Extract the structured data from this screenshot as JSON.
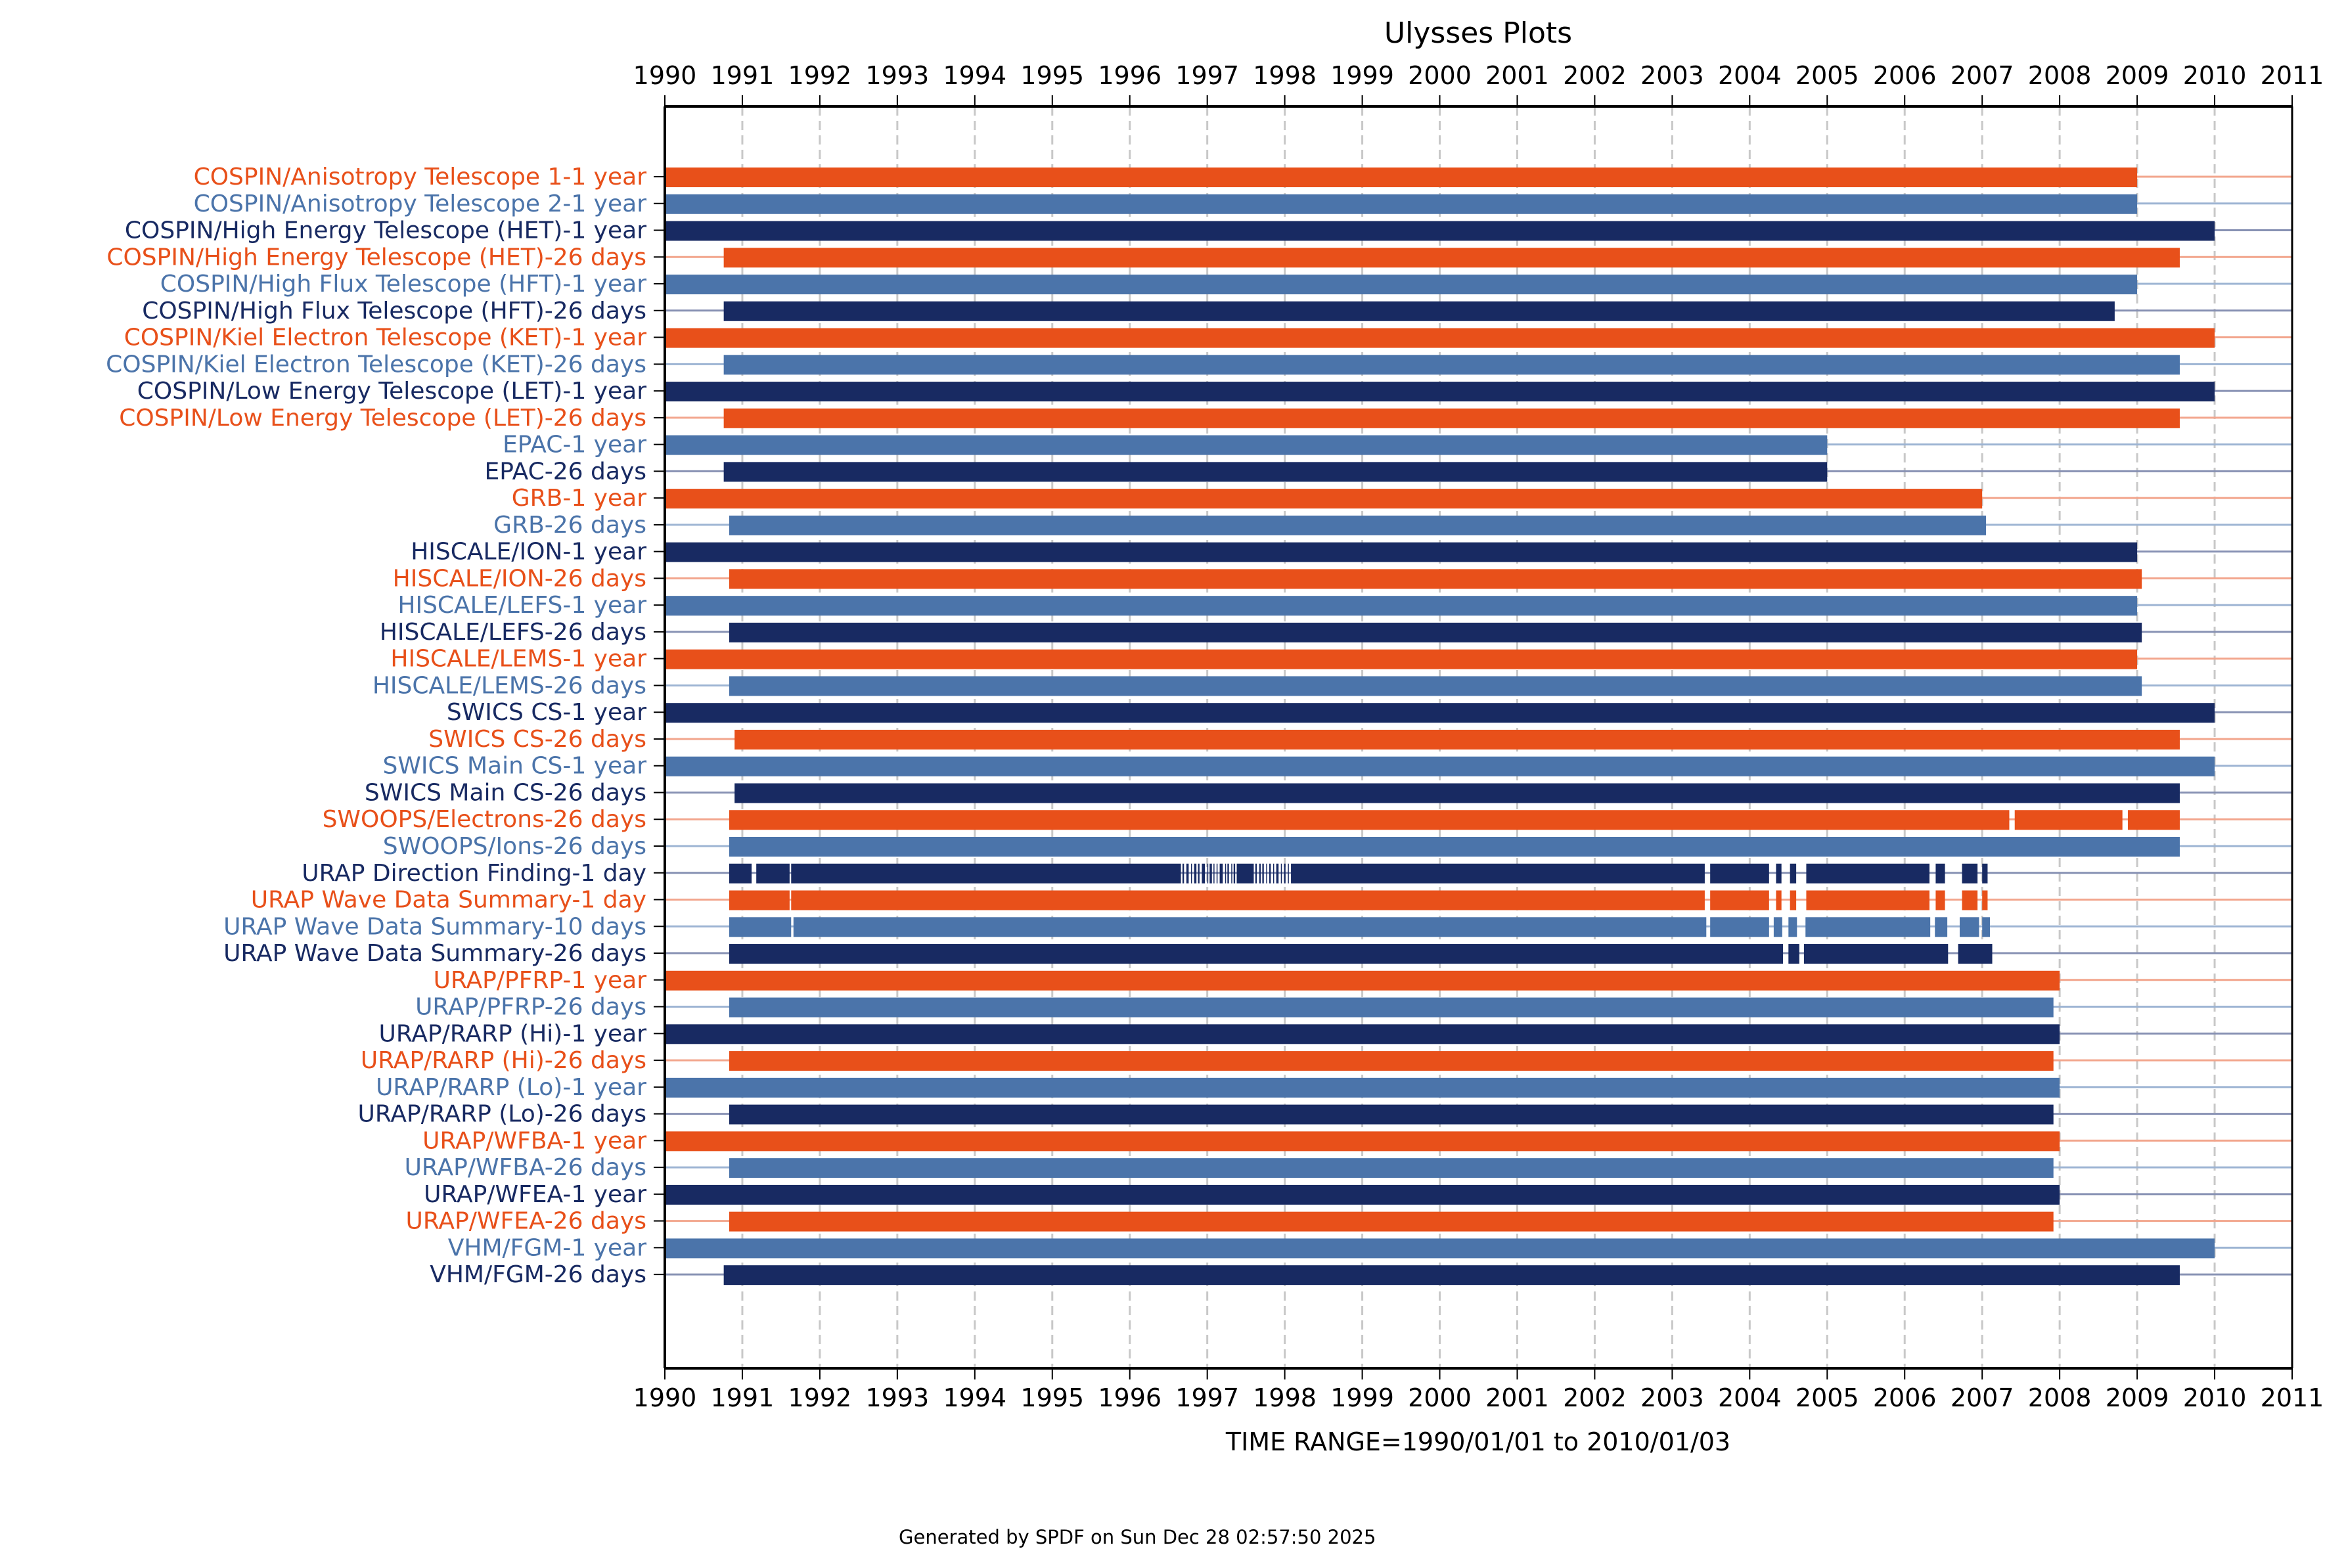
{
  "chart_data": {
    "type": "bar",
    "subtype": "timeline-gantt",
    "title": "Ulysses Plots",
    "xlabel": "TIME RANGE=1990/01/01 to 2010/01/03",
    "ylabel": "",
    "footer": "Generated by SPDF on Sun Dec 28 02:57:50 2025",
    "xlim": [
      1990,
      2011
    ],
    "x_ticks": [
      "1990",
      "1991",
      "1992",
      "1993",
      "1994",
      "1995",
      "1996",
      "1997",
      "1998",
      "1999",
      "2000",
      "2001",
      "2002",
      "2003",
      "2004",
      "2005",
      "2006",
      "2007",
      "2008",
      "2009",
      "2010",
      "2011"
    ],
    "grid": "vertical dashed at each year",
    "colors": {
      "orange": "#E8501A",
      "steel": "#4B74AA",
      "navy": "#182A62"
    },
    "rows": [
      {
        "label": "COSPIN/Anisotropy Telescope 1-1 year",
        "color": "orange",
        "segments": [
          [
            1990.0,
            2009.0
          ]
        ]
      },
      {
        "label": "COSPIN/Anisotropy Telescope 2-1 year",
        "color": "steel",
        "segments": [
          [
            1990.0,
            2009.0
          ]
        ]
      },
      {
        "label": "COSPIN/High Energy Telescope (HET)-1 year",
        "color": "navy",
        "segments": [
          [
            1990.0,
            2010.0
          ]
        ]
      },
      {
        "label": "COSPIN/High Energy Telescope (HET)-26 days",
        "color": "orange",
        "segments": [
          [
            1990.76,
            2009.55
          ]
        ]
      },
      {
        "label": "COSPIN/High Flux Telescope (HFT)-1 year",
        "color": "steel",
        "segments": [
          [
            1990.0,
            2009.0
          ]
        ]
      },
      {
        "label": "COSPIN/High Flux Telescope (HFT)-26 days",
        "color": "navy",
        "segments": [
          [
            1990.76,
            2008.71
          ]
        ]
      },
      {
        "label": "COSPIN/Kiel Electron Telescope (KET)-1 year",
        "color": "orange",
        "segments": [
          [
            1990.0,
            2010.0
          ]
        ]
      },
      {
        "label": "COSPIN/Kiel Electron Telescope (KET)-26 days",
        "color": "steel",
        "segments": [
          [
            1990.76,
            2009.55
          ]
        ]
      },
      {
        "label": "COSPIN/Low Energy Telescope (LET)-1 year",
        "color": "navy",
        "segments": [
          [
            1990.0,
            2010.0
          ]
        ]
      },
      {
        "label": "COSPIN/Low Energy Telescope (LET)-26 days",
        "color": "orange",
        "segments": [
          [
            1990.76,
            2009.55
          ]
        ]
      },
      {
        "label": "EPAC-1 year",
        "color": "steel",
        "segments": [
          [
            1990.0,
            2005.0
          ]
        ]
      },
      {
        "label": "EPAC-26 days",
        "color": "navy",
        "segments": [
          [
            1990.76,
            2005.0
          ]
        ]
      },
      {
        "label": "GRB-1 year",
        "color": "orange",
        "segments": [
          [
            1990.0,
            2007.0
          ]
        ]
      },
      {
        "label": "GRB-26 days",
        "color": "steel",
        "segments": [
          [
            1990.83,
            2007.05
          ]
        ]
      },
      {
        "label": "HISCALE/ION-1 year",
        "color": "navy",
        "segments": [
          [
            1990.0,
            2009.0
          ]
        ]
      },
      {
        "label": "HISCALE/ION-26 days",
        "color": "orange",
        "segments": [
          [
            1990.83,
            2009.06
          ]
        ]
      },
      {
        "label": "HISCALE/LEFS-1 year",
        "color": "steel",
        "segments": [
          [
            1990.0,
            2009.0
          ]
        ]
      },
      {
        "label": "HISCALE/LEFS-26 days",
        "color": "navy",
        "segments": [
          [
            1990.83,
            2009.06
          ]
        ]
      },
      {
        "label": "HISCALE/LEMS-1 year",
        "color": "orange",
        "segments": [
          [
            1990.0,
            2009.0
          ]
        ]
      },
      {
        "label": "HISCALE/LEMS-26 days",
        "color": "steel",
        "segments": [
          [
            1990.83,
            2009.06
          ]
        ]
      },
      {
        "label": "SWICS CS-1 year",
        "color": "navy",
        "segments": [
          [
            1990.0,
            2010.0
          ]
        ]
      },
      {
        "label": "SWICS CS-26 days",
        "color": "orange",
        "segments": [
          [
            1990.9,
            2009.55
          ]
        ]
      },
      {
        "label": "SWICS Main CS-1 year",
        "color": "steel",
        "segments": [
          [
            1990.0,
            2010.0
          ]
        ]
      },
      {
        "label": "SWICS Main CS-26 days",
        "color": "navy",
        "segments": [
          [
            1990.9,
            2009.55
          ]
        ]
      },
      {
        "label": "SWOOPS/Electrons-26 days",
        "color": "orange",
        "segments": [
          [
            1990.83,
            2007.35
          ],
          [
            2007.42,
            2008.81
          ],
          [
            2008.88,
            2009.55
          ]
        ]
      },
      {
        "label": "SWOOPS/Ions-26 days",
        "color": "steel",
        "segments": [
          [
            1990.83,
            2009.55
          ]
        ]
      },
      {
        "label": "URAP Direction Finding-1 day",
        "color": "navy",
        "segments": [
          [
            1990.83,
            1991.12
          ],
          [
            1991.18,
            1991.61
          ],
          [
            1991.63,
            1996.66
          ],
          [
            1996.68,
            1996.7
          ],
          [
            1996.73,
            1996.76
          ],
          [
            1996.79,
            1996.8
          ],
          [
            1996.83,
            1996.86
          ],
          [
            1996.88,
            1996.9
          ],
          [
            1996.93,
            1996.97
          ],
          [
            1997.0,
            1997.01
          ],
          [
            1997.03,
            1997.06
          ],
          [
            1997.08,
            1997.09
          ],
          [
            1997.12,
            1997.13
          ],
          [
            1997.16,
            1997.2
          ],
          [
            1997.23,
            1997.24
          ],
          [
            1997.26,
            1997.28
          ],
          [
            1997.31,
            1997.32
          ],
          [
            1997.34,
            1997.36
          ],
          [
            1997.38,
            1997.6
          ],
          [
            1997.62,
            1997.64
          ],
          [
            1997.67,
            1997.69
          ],
          [
            1997.71,
            1997.73
          ],
          [
            1997.76,
            1997.77
          ],
          [
            1997.8,
            1997.82
          ],
          [
            1997.85,
            1997.86
          ],
          [
            1997.89,
            1997.92
          ],
          [
            1997.95,
            1997.96
          ],
          [
            1997.99,
            1998.01
          ],
          [
            1998.04,
            1998.05
          ],
          [
            1998.08,
            2003.42
          ],
          [
            2003.49,
            2004.25
          ],
          [
            2004.34,
            2004.41
          ],
          [
            2004.52,
            2004.6
          ],
          [
            2004.73,
            2006.32
          ],
          [
            2006.4,
            2006.52
          ],
          [
            2006.74,
            2006.94
          ],
          [
            2007.0,
            2007.07
          ]
        ]
      },
      {
        "label": "URAP Wave Data Summary-1 day",
        "color": "orange",
        "segments": [
          [
            1990.83,
            1991.61
          ],
          [
            1991.63,
            2003.42
          ],
          [
            2003.49,
            2004.25
          ],
          [
            2004.34,
            2004.41
          ],
          [
            2004.52,
            2004.6
          ],
          [
            2004.73,
            2006.32
          ],
          [
            2006.4,
            2006.52
          ],
          [
            2006.74,
            2006.94
          ],
          [
            2007.0,
            2007.07
          ]
        ]
      },
      {
        "label": "URAP Wave Data Summary-10 days",
        "color": "steel",
        "segments": [
          [
            1990.83,
            1991.63
          ],
          [
            1991.66,
            2003.44
          ],
          [
            2003.49,
            2004.25
          ],
          [
            2004.31,
            2004.42
          ],
          [
            2004.5,
            2004.61
          ],
          [
            2004.72,
            2006.33
          ],
          [
            2006.39,
            2006.55
          ],
          [
            2006.71,
            2006.96
          ],
          [
            2007.0,
            2007.1
          ]
        ]
      },
      {
        "label": "URAP Wave Data Summary-26 days",
        "color": "navy",
        "segments": [
          [
            1990.83,
            2004.43
          ],
          [
            2004.5,
            2004.64
          ],
          [
            2004.7,
            2006.56
          ],
          [
            2006.69,
            2007.13
          ]
        ]
      },
      {
        "label": "URAP/PFRP-1 year",
        "color": "orange",
        "segments": [
          [
            1990.0,
            2008.0
          ]
        ]
      },
      {
        "label": "URAP/PFRP-26 days",
        "color": "steel",
        "segments": [
          [
            1990.83,
            2007.92
          ]
        ]
      },
      {
        "label": "URAP/RARP (Hi)-1 year",
        "color": "navy",
        "segments": [
          [
            1990.0,
            2008.0
          ]
        ]
      },
      {
        "label": "URAP/RARP (Hi)-26 days",
        "color": "orange",
        "segments": [
          [
            1990.83,
            2007.92
          ]
        ]
      },
      {
        "label": "URAP/RARP (Lo)-1 year",
        "color": "steel",
        "segments": [
          [
            1990.0,
            2008.0
          ]
        ]
      },
      {
        "label": "URAP/RARP (Lo)-26 days",
        "color": "navy",
        "segments": [
          [
            1990.83,
            2007.92
          ]
        ]
      },
      {
        "label": "URAP/WFBA-1 year",
        "color": "orange",
        "segments": [
          [
            1990.0,
            2008.0
          ]
        ]
      },
      {
        "label": "URAP/WFBA-26 days",
        "color": "steel",
        "segments": [
          [
            1990.83,
            2007.92
          ]
        ]
      },
      {
        "label": "URAP/WFEA-1 year",
        "color": "navy",
        "segments": [
          [
            1990.0,
            2008.0
          ]
        ]
      },
      {
        "label": "URAP/WFEA-26 days",
        "color": "orange",
        "segments": [
          [
            1990.83,
            2007.92
          ]
        ]
      },
      {
        "label": "VHM/FGM-1 year",
        "color": "steel",
        "segments": [
          [
            1990.0,
            2010.0
          ]
        ]
      },
      {
        "label": "VHM/FGM-26 days",
        "color": "navy",
        "segments": [
          [
            1990.76,
            2009.55
          ]
        ]
      }
    ]
  }
}
